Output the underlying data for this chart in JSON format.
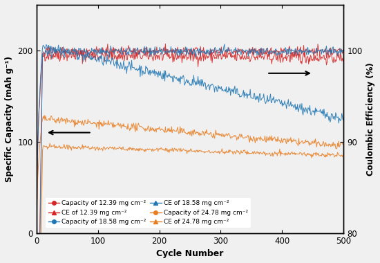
{
  "xlabel": "Cycle Number",
  "ylabel_left": "Specific Capacity (mAh g⁻¹)",
  "ylabel_right": "Coulombic Efficiency (%)",
  "xlim": [
    0,
    500
  ],
  "ylim_left": [
    0,
    250
  ],
  "ylim_right": [
    80,
    105
  ],
  "xticks": [
    0,
    100,
    200,
    300,
    400,
    500
  ],
  "yticks_left": [
    0,
    100,
    200
  ],
  "yticks_right": [
    80,
    90,
    100
  ],
  "colors": {
    "red": "#d62728",
    "blue": "#1f77b4",
    "orange": "#e87e22"
  },
  "cap_12_start": 195,
  "cap_12_end": 192,
  "cap_12_noise": 3.5,
  "cap_18_start": 205,
  "cap_18_end": 125,
  "cap_18_noise": 3.0,
  "cap_24_start": 125,
  "cap_24_end": 95,
  "cap_24_noise": 2.0,
  "ce_12_val": 99.9,
  "ce_18_val": 99.9,
  "ce_24_val": 89.5,
  "ce_24_end": 88.5,
  "ce_noise": 0.25,
  "background_color": "#f0f0f0",
  "legend_cap12": "Capacity of 12.39 mg cm⁻²",
  "legend_ce12": "CE of 12.39 mg cm⁻²",
  "legend_cap18": "Capacity of 18.58 mg cm⁻²",
  "legend_ce18": "CE of 18.58 mg cm⁻²",
  "legend_cap24": "Capacity of 24.78 mg cm⁻²",
  "legend_ce24": "CE of 24.78 mg cm⁻²"
}
